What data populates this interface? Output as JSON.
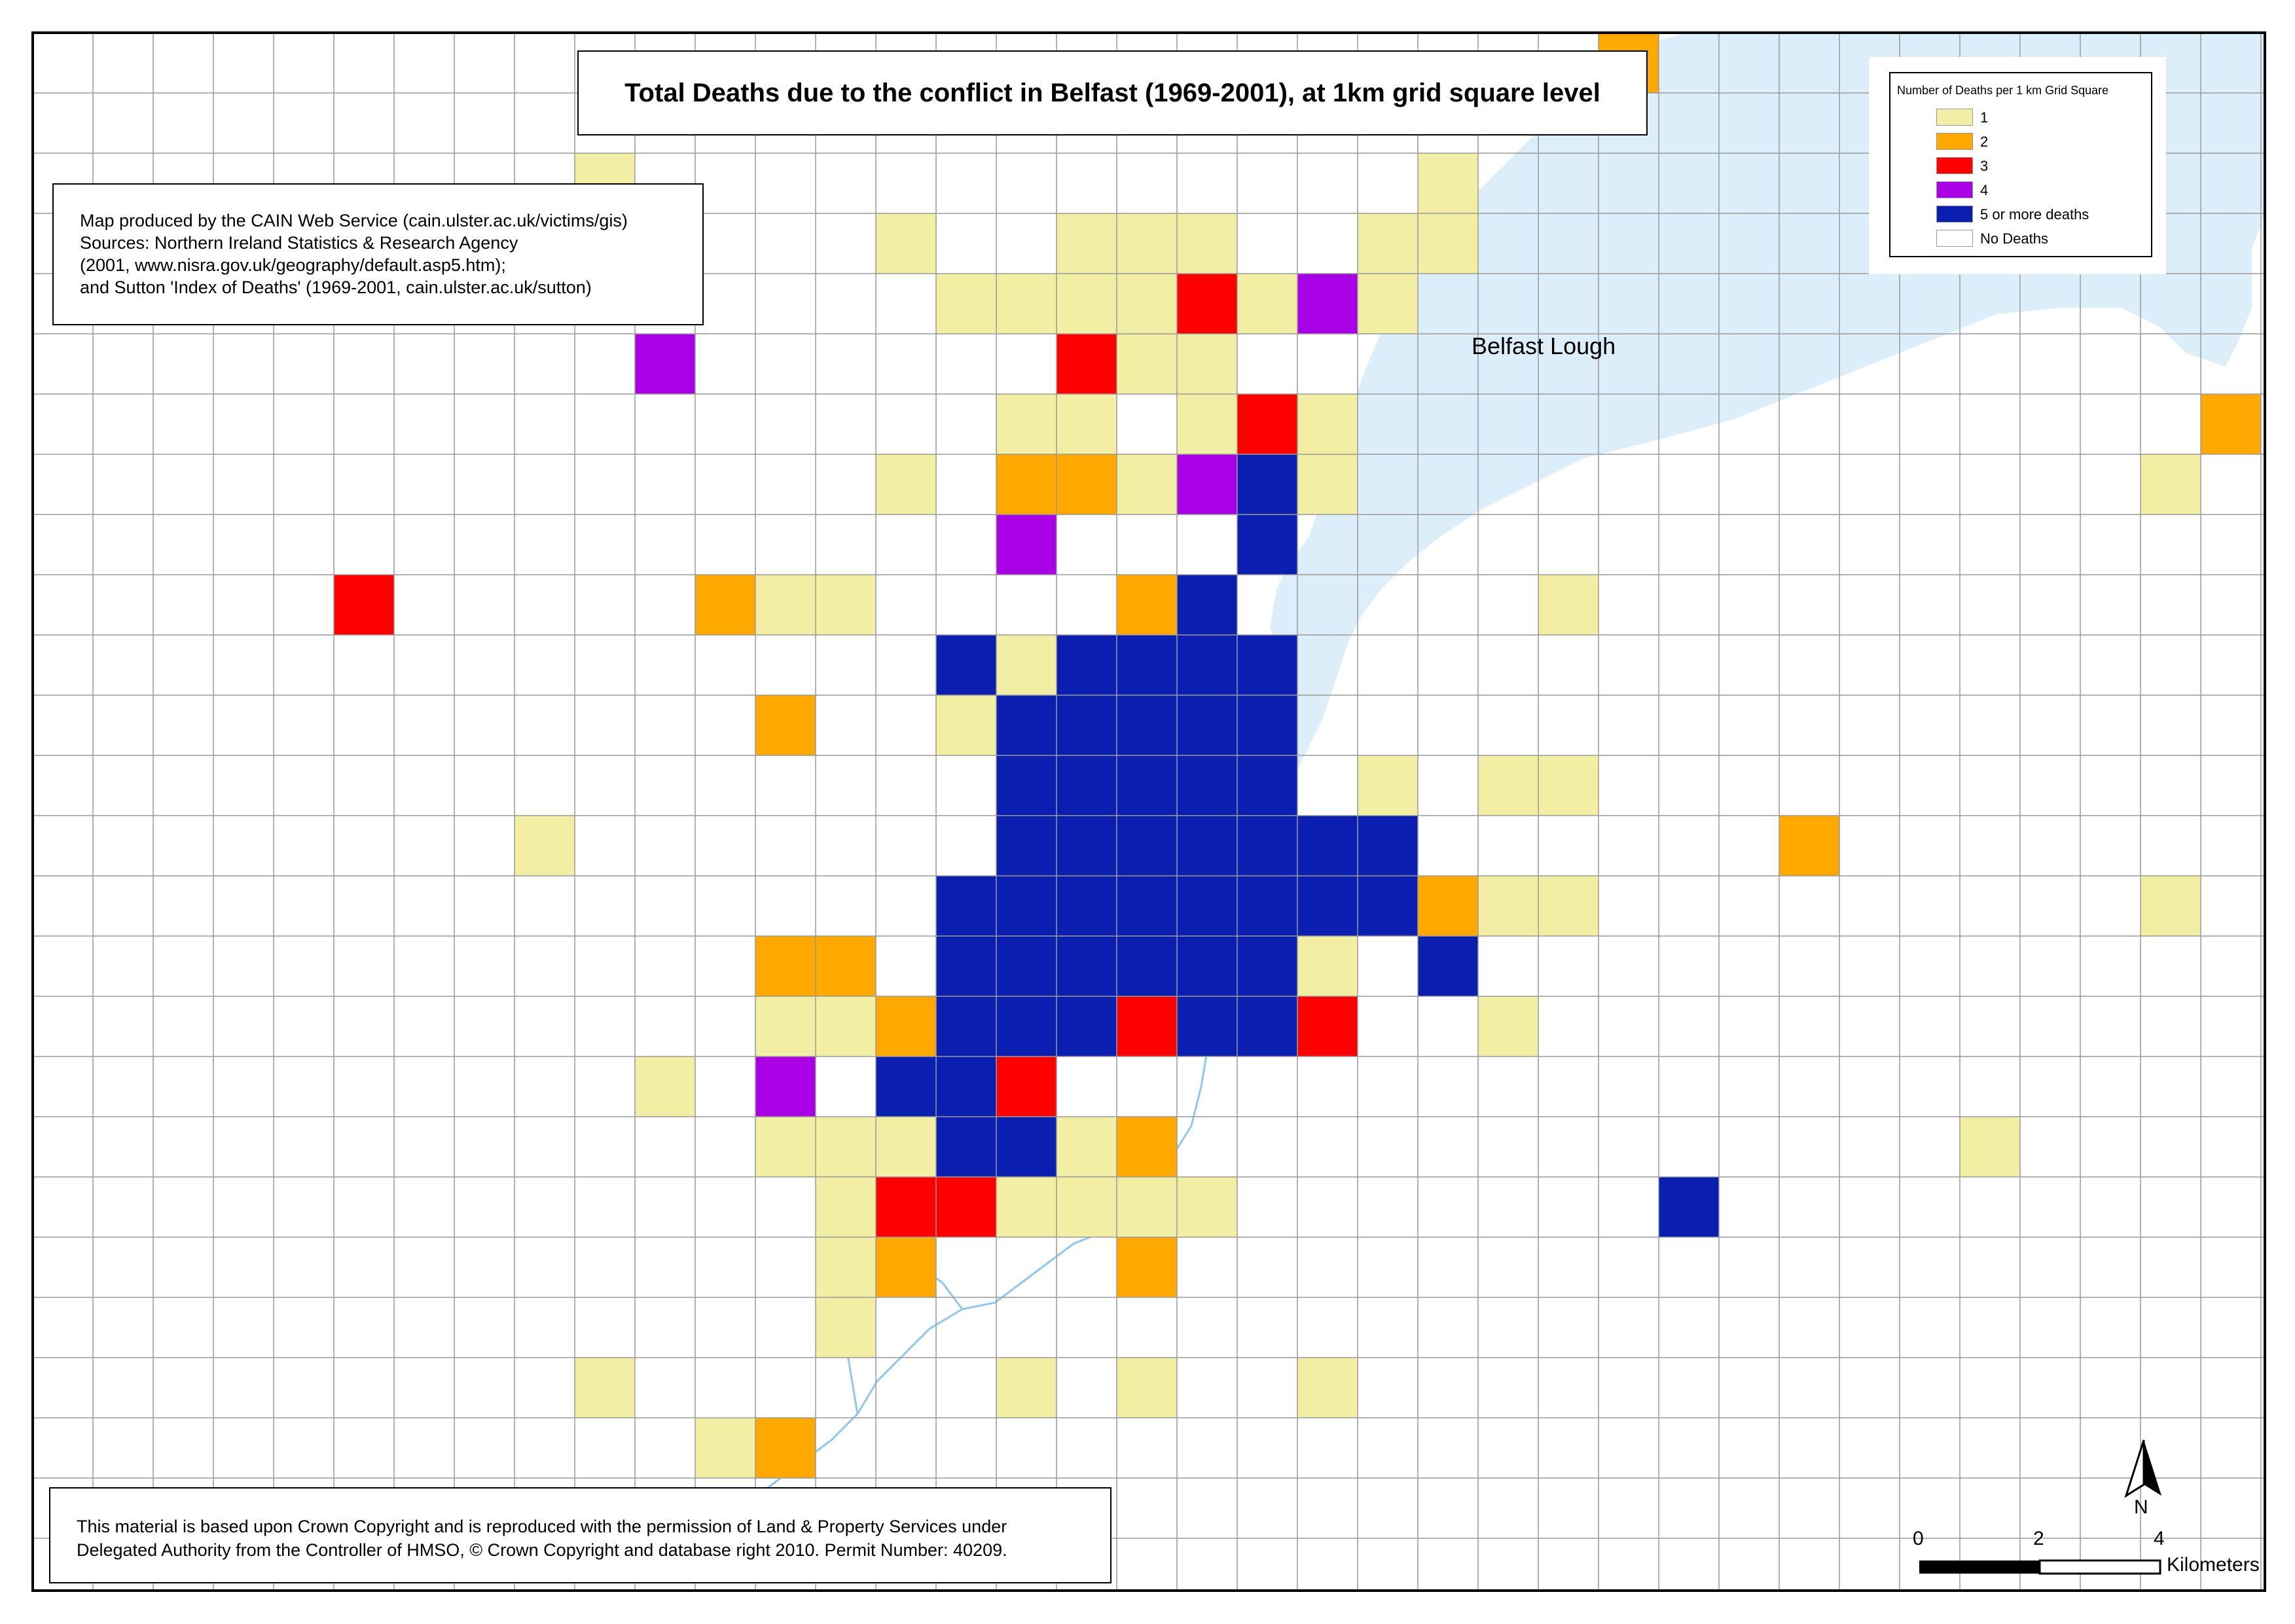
{
  "title": "Total Deaths due to the conflict in Belfast (1969-2001), at 1km grid square level",
  "credits": [
    "Map produced by the CAIN Web Service (cain.ulster.ac.uk/victims/gis)",
    "Sources: Northern Ireland Statistics & Research Agency",
    "(2001, www.nisra.gov.uk/geography/default.asp5.htm);",
    "and Sutton 'Index of Deaths' (1969-2001, cain.ulster.ac.uk/sutton)"
  ],
  "copyright": [
    "This material is based upon Crown Copyright and is reproduced with the permission of Land & Property Services under",
    "Delegated Authority from the Controller of HMSO, © Crown Copyright and database right 2010. Permit Number: 40209."
  ],
  "legend": {
    "title": "Number of Deaths per 1 km Grid Square",
    "items": [
      {
        "label": "1",
        "level": 1,
        "color": "#F2EFA5"
      },
      {
        "label": "2",
        "level": 2,
        "color": "#FFA800"
      },
      {
        "label": "3",
        "level": 3,
        "color": "#FF0000"
      },
      {
        "label": "4",
        "level": 4,
        "color": "#AA00E6"
      },
      {
        "label": "5 or more deaths",
        "level": 5,
        "color": "#0A1FB0"
      },
      {
        "label": "No Deaths",
        "level": 0,
        "color": "#FFFFFF"
      }
    ]
  },
  "water_label": "Belfast Lough",
  "water_color": "#DCEEFA",
  "river_color": "#8FC8EE",
  "scale_bar": {
    "ticks": [
      "0",
      "2",
      "4"
    ],
    "unit": "Kilometers"
  },
  "north_label": "N",
  "grid": {
    "columns": 37,
    "rows": 26,
    "death_levels": [
      [
        0,
        0,
        0,
        0,
        0,
        0,
        0,
        0,
        0,
        0,
        0,
        0,
        0,
        0,
        0,
        0,
        0,
        0,
        0,
        0,
        0,
        0,
        0,
        0,
        0,
        0,
        2,
        0,
        0,
        0,
        0,
        0,
        0,
        0,
        0,
        0,
        0
      ],
      [
        0,
        0,
        0,
        0,
        0,
        0,
        0,
        0,
        0,
        0,
        0,
        0,
        0,
        0,
        0,
        0,
        0,
        0,
        0,
        0,
        0,
        0,
        0,
        0,
        0,
        0,
        0,
        0,
        0,
        0,
        0,
        0,
        0,
        0,
        0,
        0,
        0
      ],
      [
        0,
        0,
        0,
        0,
        0,
        0,
        0,
        0,
        0,
        1,
        0,
        0,
        0,
        0,
        0,
        0,
        0,
        0,
        0,
        0,
        0,
        0,
        0,
        1,
        0,
        0,
        0,
        0,
        0,
        0,
        0,
        0,
        0,
        0,
        0,
        0,
        0
      ],
      [
        0,
        0,
        0,
        0,
        0,
        0,
        0,
        0,
        0,
        0,
        0,
        0,
        0,
        0,
        1,
        0,
        0,
        1,
        1,
        1,
        0,
        0,
        1,
        1,
        0,
        0,
        0,
        0,
        0,
        0,
        0,
        0,
        0,
        0,
        0,
        0,
        0
      ],
      [
        0,
        0,
        0,
        0,
        0,
        0,
        0,
        0,
        0,
        0,
        0,
        0,
        0,
        0,
        0,
        1,
        1,
        1,
        1,
        3,
        1,
        4,
        1,
        0,
        0,
        0,
        0,
        0,
        0,
        0,
        0,
        0,
        0,
        0,
        0,
        0,
        0
      ],
      [
        0,
        0,
        0,
        0,
        0,
        0,
        0,
        0,
        0,
        0,
        4,
        0,
        0,
        0,
        0,
        0,
        0,
        3,
        1,
        1,
        0,
        0,
        0,
        0,
        0,
        0,
        0,
        0,
        0,
        0,
        0,
        0,
        0,
        0,
        0,
        0,
        0
      ],
      [
        0,
        0,
        0,
        0,
        0,
        0,
        0,
        0,
        0,
        0,
        0,
        0,
        0,
        0,
        0,
        0,
        1,
        1,
        0,
        1,
        3,
        1,
        0,
        0,
        0,
        0,
        0,
        0,
        0,
        0,
        0,
        0,
        0,
        0,
        0,
        0,
        2
      ],
      [
        0,
        0,
        0,
        0,
        0,
        0,
        0,
        0,
        0,
        0,
        0,
        0,
        0,
        0,
        1,
        0,
        2,
        2,
        1,
        4,
        5,
        1,
        0,
        0,
        0,
        0,
        0,
        0,
        0,
        0,
        0,
        0,
        0,
        0,
        0,
        1,
        0
      ],
      [
        0,
        0,
        0,
        0,
        0,
        0,
        0,
        0,
        0,
        0,
        0,
        0,
        0,
        0,
        0,
        0,
        4,
        0,
        0,
        0,
        5,
        0,
        0,
        0,
        0,
        0,
        0,
        0,
        0,
        0,
        0,
        0,
        0,
        0,
        0,
        0,
        0
      ],
      [
        0,
        0,
        0,
        0,
        0,
        3,
        0,
        0,
        0,
        0,
        0,
        2,
        1,
        1,
        0,
        0,
        0,
        0,
        2,
        5,
        0,
        0,
        0,
        0,
        0,
        1,
        0,
        0,
        0,
        0,
        0,
        0,
        0,
        0,
        0,
        0,
        0
      ],
      [
        0,
        0,
        0,
        0,
        0,
        0,
        0,
        0,
        0,
        0,
        0,
        0,
        0,
        0,
        0,
        5,
        1,
        5,
        5,
        5,
        5,
        0,
        0,
        0,
        0,
        0,
        0,
        0,
        0,
        0,
        0,
        0,
        0,
        0,
        0,
        0,
        0
      ],
      [
        0,
        0,
        0,
        0,
        0,
        0,
        0,
        0,
        0,
        0,
        0,
        0,
        2,
        0,
        0,
        1,
        5,
        5,
        5,
        5,
        5,
        0,
        0,
        0,
        0,
        0,
        0,
        0,
        0,
        0,
        0,
        0,
        0,
        0,
        0,
        0,
        0
      ],
      [
        0,
        0,
        0,
        0,
        0,
        0,
        0,
        0,
        0,
        0,
        0,
        0,
        0,
        0,
        0,
        0,
        5,
        5,
        5,
        5,
        5,
        0,
        1,
        0,
        1,
        1,
        0,
        0,
        0,
        0,
        0,
        0,
        0,
        0,
        0,
        0,
        0
      ],
      [
        0,
        0,
        0,
        0,
        0,
        0,
        0,
        0,
        1,
        0,
        0,
        0,
        0,
        0,
        0,
        0,
        5,
        5,
        5,
        5,
        5,
        5,
        5,
        0,
        0,
        0,
        0,
        0,
        0,
        2,
        0,
        0,
        0,
        0,
        0,
        0,
        0
      ],
      [
        0,
        0,
        0,
        0,
        0,
        0,
        0,
        0,
        0,
        0,
        0,
        0,
        0,
        0,
        0,
        5,
        5,
        5,
        5,
        5,
        5,
        5,
        5,
        2,
        1,
        1,
        0,
        0,
        0,
        0,
        0,
        0,
        0,
        0,
        0,
        1,
        0
      ],
      [
        0,
        0,
        0,
        0,
        0,
        0,
        0,
        0,
        0,
        0,
        0,
        0,
        2,
        2,
        0,
        5,
        5,
        5,
        5,
        5,
        5,
        1,
        0,
        5,
        0,
        0,
        0,
        0,
        0,
        0,
        0,
        0,
        0,
        0,
        0,
        0,
        0
      ],
      [
        0,
        0,
        0,
        0,
        0,
        0,
        0,
        0,
        0,
        0,
        0,
        0,
        1,
        1,
        2,
        5,
        5,
        5,
        3,
        5,
        5,
        3,
        0,
        0,
        1,
        0,
        0,
        0,
        0,
        0,
        0,
        0,
        0,
        0,
        0,
        0,
        0
      ],
      [
        0,
        0,
        0,
        0,
        0,
        0,
        0,
        0,
        0,
        0,
        1,
        0,
        4,
        0,
        5,
        5,
        3,
        0,
        0,
        0,
        0,
        0,
        0,
        0,
        0,
        0,
        0,
        0,
        0,
        0,
        0,
        0,
        0,
        0,
        0,
        0,
        0
      ],
      [
        0,
        0,
        0,
        0,
        0,
        0,
        0,
        0,
        0,
        0,
        0,
        0,
        1,
        1,
        1,
        5,
        5,
        1,
        2,
        0,
        0,
        0,
        0,
        0,
        0,
        0,
        0,
        0,
        0,
        0,
        0,
        0,
        1,
        0,
        0,
        0,
        0
      ],
      [
        0,
        0,
        0,
        0,
        0,
        0,
        0,
        0,
        0,
        0,
        0,
        0,
        0,
        1,
        3,
        3,
        1,
        1,
        1,
        1,
        0,
        0,
        0,
        0,
        0,
        0,
        0,
        5,
        0,
        0,
        0,
        0,
        0,
        0,
        0,
        0,
        0
      ],
      [
        0,
        0,
        0,
        0,
        0,
        0,
        0,
        0,
        0,
        0,
        0,
        0,
        0,
        1,
        2,
        0,
        0,
        0,
        2,
        0,
        0,
        0,
        0,
        0,
        0,
        0,
        0,
        0,
        0,
        0,
        0,
        0,
        0,
        0,
        0,
        0,
        0
      ],
      [
        0,
        0,
        0,
        0,
        0,
        0,
        0,
        0,
        0,
        0,
        0,
        0,
        0,
        1,
        0,
        0,
        0,
        0,
        0,
        0,
        0,
        0,
        0,
        0,
        0,
        0,
        0,
        0,
        0,
        0,
        0,
        0,
        0,
        0,
        0,
        0,
        0
      ],
      [
        0,
        0,
        0,
        0,
        0,
        0,
        0,
        0,
        0,
        1,
        0,
        0,
        0,
        0,
        0,
        0,
        1,
        0,
        1,
        0,
        0,
        1,
        0,
        0,
        0,
        0,
        0,
        0,
        0,
        0,
        0,
        0,
        0,
        0,
        0,
        0,
        0
      ],
      [
        0,
        0,
        0,
        0,
        0,
        0,
        0,
        0,
        0,
        0,
        0,
        1,
        2,
        0,
        0,
        0,
        0,
        0,
        0,
        0,
        0,
        0,
        0,
        0,
        0,
        0,
        0,
        0,
        0,
        0,
        0,
        0,
        0,
        0,
        0,
        0,
        0
      ],
      [
        0,
        0,
        0,
        0,
        0,
        0,
        0,
        0,
        0,
        0,
        0,
        0,
        0,
        0,
        0,
        0,
        0,
        0,
        0,
        0,
        0,
        0,
        0,
        0,
        0,
        0,
        0,
        0,
        0,
        0,
        0,
        0,
        0,
        0,
        0,
        0,
        0
      ],
      [
        0,
        0,
        0,
        0,
        0,
        0,
        0,
        0,
        0,
        0,
        0,
        0,
        0,
        0,
        0,
        0,
        0,
        0,
        0,
        0,
        0,
        0,
        0,
        0,
        0,
        0,
        0,
        0,
        0,
        0,
        0,
        0,
        0,
        0,
        0,
        0,
        0
      ]
    ]
  }
}
